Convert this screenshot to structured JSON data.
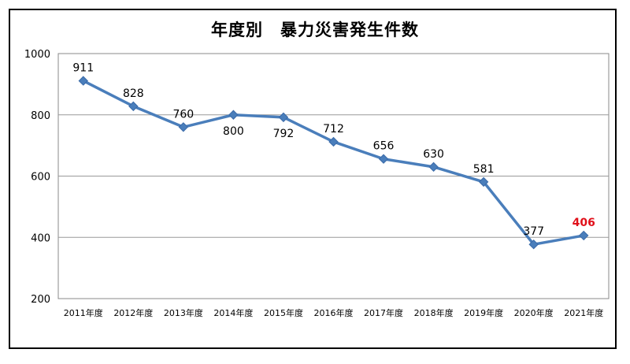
{
  "chart_data": {
    "type": "line",
    "title": "年度別　暴力災害発生件数",
    "categories": [
      "2011年度",
      "2012年度",
      "2013年度",
      "2014年度",
      "2015年度",
      "2016年度",
      "2017年度",
      "2018年度",
      "2019年度",
      "2020年度",
      "2021年度"
    ],
    "values": [
      911,
      828,
      760,
      800,
      792,
      712,
      656,
      630,
      581,
      377,
      406
    ],
    "ylim": [
      200,
      1000
    ],
    "yticks": [
      "200",
      "400",
      "600",
      "800",
      "1000"
    ],
    "grid": true,
    "legend": "none",
    "colors": {
      "line": "#4a7ebb",
      "marker": "#4a7ebb",
      "highlight_label": "#e0101a",
      "grid": "#9a9a9a"
    },
    "highlight_index": 10
  }
}
